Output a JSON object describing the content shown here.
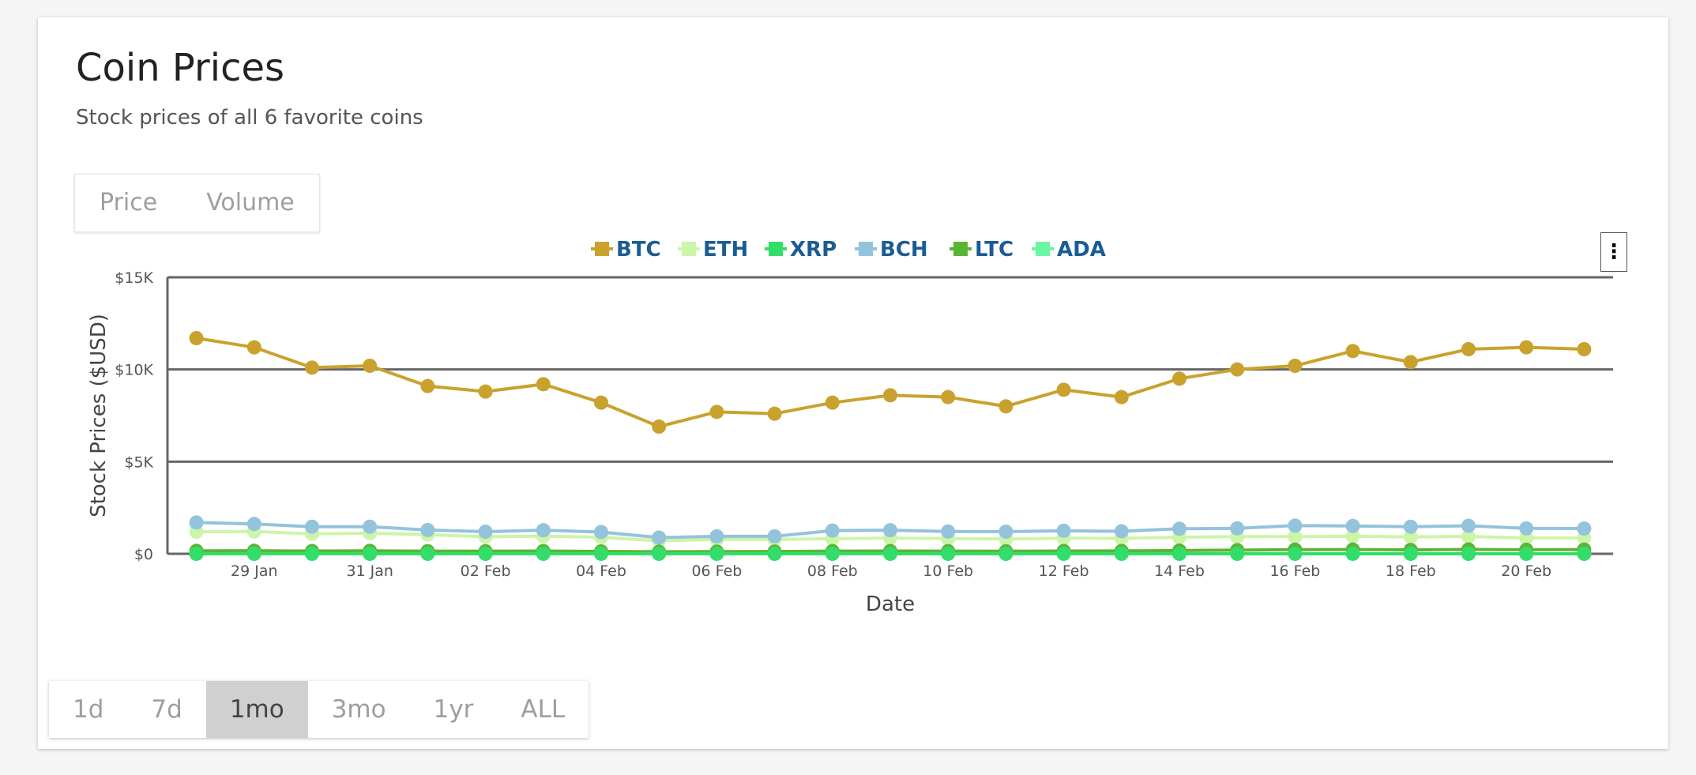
{
  "header": {
    "title": "Coin Prices",
    "subtitle": "Stock prices of all 6 favorite coins"
  },
  "view_toggle": [
    "Price",
    "Volume"
  ],
  "range_buttons": [
    {
      "label": "1d",
      "active": false
    },
    {
      "label": "7d",
      "active": false
    },
    {
      "label": "1mo",
      "active": true
    },
    {
      "label": "3mo",
      "active": false
    },
    {
      "label": "1yr",
      "active": false
    },
    {
      "label": "ALL",
      "active": false
    }
  ],
  "menu_icon": "more-vert-icon",
  "colors": {
    "legend_text": "#1a5c94",
    "gridline": "#666666"
  },
  "chart_data": {
    "type": "line",
    "title": "",
    "xlabel": "Date",
    "ylabel": "Stock Prices ($USD)",
    "legend_position": "top-center",
    "grid": true,
    "ylim": [
      0,
      15000
    ],
    "yticks": [
      {
        "value": 0,
        "label": "$0"
      },
      {
        "value": 5000,
        "label": "$5K"
      },
      {
        "value": 10000,
        "label": "$10K"
      },
      {
        "value": 15000,
        "label": "$15K"
      }
    ],
    "xlim": [
      "2018-01-27T12:00",
      "2018-02-21T12:00"
    ],
    "xticks": [
      {
        "value": "2018-01-29",
        "label": "29 Jan"
      },
      {
        "value": "2018-01-31",
        "label": "31 Jan"
      },
      {
        "value": "2018-02-02",
        "label": "02 Feb"
      },
      {
        "value": "2018-02-04",
        "label": "04 Feb"
      },
      {
        "value": "2018-02-06",
        "label": "06 Feb"
      },
      {
        "value": "2018-02-08",
        "label": "08 Feb"
      },
      {
        "value": "2018-02-10",
        "label": "10 Feb"
      },
      {
        "value": "2018-02-12",
        "label": "12 Feb"
      },
      {
        "value": "2018-02-14",
        "label": "14 Feb"
      },
      {
        "value": "2018-02-16",
        "label": "16 Feb"
      },
      {
        "value": "2018-02-18",
        "label": "18 Feb"
      },
      {
        "value": "2018-02-20",
        "label": "20 Feb"
      }
    ],
    "x": [
      "2018-01-28",
      "2018-01-29",
      "2018-01-30",
      "2018-01-31",
      "2018-02-01",
      "2018-02-02",
      "2018-02-03",
      "2018-02-04",
      "2018-02-05",
      "2018-02-06",
      "2018-02-07",
      "2018-02-08",
      "2018-02-09",
      "2018-02-10",
      "2018-02-11",
      "2018-02-12",
      "2018-02-13",
      "2018-02-14",
      "2018-02-15",
      "2018-02-16",
      "2018-02-17",
      "2018-02-18",
      "2018-02-19",
      "2018-02-20",
      "2018-02-21"
    ],
    "series": [
      {
        "name": "BTC",
        "color": "#c9a22e",
        "values": [
          11700,
          11200,
          10100,
          10200,
          9100,
          8800,
          9200,
          8200,
          6900,
          7700,
          7600,
          8200,
          8600,
          8500,
          8000,
          8900,
          8500,
          9500,
          10000,
          10200,
          11000,
          10400,
          11100,
          11200,
          11100
        ]
      },
      {
        "name": "ETH",
        "color": "#ccf5a8",
        "values": [
          1200,
          1210,
          1080,
          1120,
          1040,
          920,
          960,
          900,
          700,
          780,
          780,
          820,
          850,
          830,
          800,
          850,
          840,
          900,
          930,
          930,
          950,
          920,
          940,
          860,
          860
        ]
      },
      {
        "name": "XRP",
        "color": "#33dd6a",
        "values": [
          1.4,
          1.3,
          1.2,
          1.15,
          1.1,
          0.95,
          0.97,
          0.88,
          0.7,
          0.75,
          0.72,
          0.8,
          0.85,
          0.82,
          0.78,
          1.05,
          1.0,
          1.05,
          1.1,
          1.15,
          1.12,
          1.1,
          1.1,
          1.05,
          1.0
        ]
      },
      {
        "name": "BCH",
        "color": "#94c3dc",
        "values": [
          1700,
          1620,
          1470,
          1470,
          1290,
          1200,
          1280,
          1180,
          880,
          950,
          950,
          1260,
          1280,
          1210,
          1200,
          1250,
          1220,
          1360,
          1380,
          1530,
          1510,
          1470,
          1520,
          1380,
          1370
        ]
      },
      {
        "name": "LTC",
        "color": "#5bb534",
        "values": [
          160,
          165,
          150,
          160,
          145,
          140,
          150,
          130,
          110,
          120,
          125,
          145,
          150,
          145,
          140,
          150,
          155,
          175,
          200,
          225,
          230,
          210,
          235,
          220,
          230
        ]
      },
      {
        "name": "ADA",
        "color": "#6cf5a3",
        "values": [
          0.65,
          0.62,
          0.55,
          0.58,
          0.5,
          0.42,
          0.46,
          0.4,
          0.3,
          0.35,
          0.34,
          0.38,
          0.4,
          0.38,
          0.36,
          0.38,
          0.37,
          0.4,
          0.42,
          0.42,
          0.42,
          0.4,
          0.42,
          0.38,
          0.37
        ]
      }
    ]
  }
}
